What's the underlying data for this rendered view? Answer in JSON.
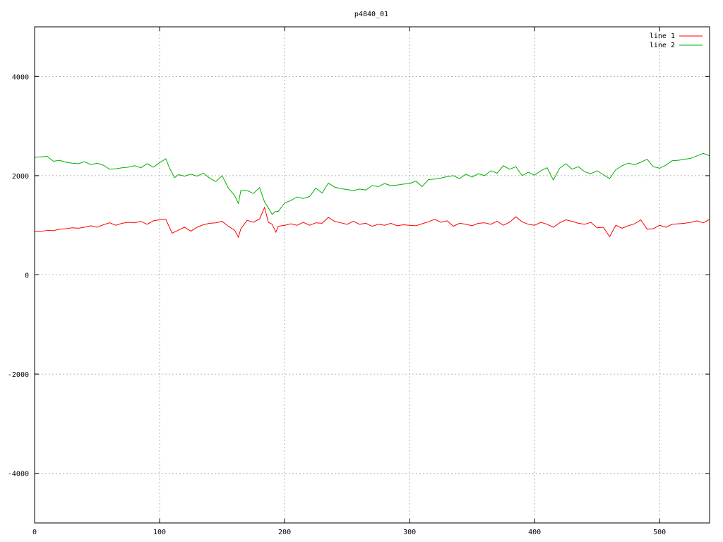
{
  "chart_data": {
    "type": "line",
    "title": "p4840_01",
    "xlabel": "",
    "ylabel": "",
    "xlim": [
      0,
      540
    ],
    "ylim": [
      -5000,
      5000
    ],
    "x_ticks": [
      0,
      100,
      200,
      300,
      400,
      500
    ],
    "y_ticks": [
      -4000,
      -2000,
      0,
      2000,
      4000
    ],
    "x_tick_labels": [
      "0",
      "100",
      "200",
      "300",
      "400",
      "500"
    ],
    "y_tick_labels": [
      "-4000",
      "-2000",
      "0",
      "2000",
      "4000"
    ],
    "grid": true,
    "legend_position": "top-right",
    "series": [
      {
        "name": "line 1",
        "color": "#ff0000",
        "x": [
          0,
          5,
          10,
          15,
          20,
          25,
          30,
          35,
          40,
          45,
          50,
          55,
          60,
          65,
          70,
          75,
          80,
          85,
          90,
          95,
          100,
          105,
          110,
          115,
          120,
          125,
          130,
          135,
          140,
          145,
          150,
          155,
          160,
          163,
          165,
          170,
          175,
          180,
          184,
          187,
          190,
          193,
          195,
          200,
          205,
          210,
          215,
          220,
          225,
          230,
          235,
          240,
          245,
          250,
          255,
          260,
          265,
          270,
          275,
          280,
          285,
          290,
          295,
          300,
          305,
          310,
          315,
          320,
          325,
          330,
          335,
          340,
          345,
          350,
          355,
          360,
          365,
          370,
          375,
          380,
          385,
          390,
          395,
          400,
          405,
          410,
          415,
          420,
          425,
          430,
          435,
          440,
          445,
          450,
          455,
          460,
          465,
          470,
          475,
          480,
          485,
          490,
          495,
          500,
          505,
          510,
          515,
          520,
          525,
          530,
          535,
          540
        ],
        "y": [
          880,
          870,
          900,
          890,
          920,
          930,
          950,
          940,
          960,
          990,
          960,
          1010,
          1050,
          1000,
          1040,
          1060,
          1050,
          1080,
          1020,
          1090,
          1110,
          1120,
          840,
          900,
          960,
          880,
          960,
          1010,
          1040,
          1050,
          1080,
          980,
          900,
          760,
          930,
          1100,
          1060,
          1130,
          1360,
          1060,
          1020,
          860,
          980,
          1000,
          1030,
          1000,
          1060,
          1000,
          1050,
          1040,
          1160,
          1080,
          1050,
          1020,
          1080,
          1020,
          1040,
          980,
          1020,
          1000,
          1040,
          990,
          1010,
          1000,
          990,
          1030,
          1070,
          1120,
          1060,
          1090,
          980,
          1040,
          1020,
          990,
          1040,
          1050,
          1020,
          1080,
          1000,
          1060,
          1170,
          1070,
          1020,
          1000,
          1060,
          1020,
          960,
          1050,
          1110,
          1080,
          1040,
          1020,
          1060,
          950,
          960,
          770,
          1000,
          940,
          990,
          1030,
          1110,
          920,
          930,
          1000,
          960,
          1020,
          1030,
          1040,
          1060,
          1090,
          1050,
          1120
        ]
      },
      {
        "name": "line 2",
        "color": "#00b000",
        "x": [
          0,
          5,
          10,
          15,
          20,
          25,
          30,
          35,
          40,
          45,
          50,
          55,
          60,
          65,
          70,
          75,
          80,
          85,
          90,
          95,
          100,
          105,
          108,
          112,
          115,
          120,
          125,
          130,
          135,
          140,
          145,
          150,
          155,
          160,
          163,
          165,
          170,
          175,
          180,
          184,
          187,
          190,
          193,
          195,
          200,
          205,
          210,
          215,
          220,
          225,
          230,
          235,
          240,
          245,
          250,
          255,
          260,
          265,
          270,
          275,
          280,
          285,
          290,
          295,
          300,
          305,
          310,
          315,
          320,
          325,
          330,
          335,
          340,
          345,
          350,
          355,
          360,
          365,
          370,
          375,
          380,
          385,
          390,
          395,
          400,
          405,
          410,
          415,
          420,
          425,
          430,
          435,
          440,
          445,
          450,
          455,
          460,
          465,
          470,
          475,
          480,
          485,
          490,
          495,
          500,
          505,
          510,
          515,
          520,
          525,
          530,
          535,
          540
        ],
        "y": [
          2370,
          2380,
          2390,
          2290,
          2310,
          2270,
          2250,
          2240,
          2280,
          2220,
          2250,
          2210,
          2130,
          2140,
          2160,
          2170,
          2200,
          2160,
          2240,
          2170,
          2260,
          2340,
          2150,
          1960,
          2020,
          1990,
          2030,
          1990,
          2050,
          1950,
          1880,
          2000,
          1750,
          1600,
          1440,
          1700,
          1700,
          1640,
          1760,
          1470,
          1350,
          1220,
          1280,
          1280,
          1450,
          1500,
          1570,
          1540,
          1580,
          1750,
          1650,
          1850,
          1770,
          1740,
          1720,
          1700,
          1730,
          1710,
          1800,
          1780,
          1840,
          1800,
          1810,
          1830,
          1840,
          1890,
          1780,
          1920,
          1930,
          1950,
          1980,
          2000,
          1940,
          2030,
          1970,
          2040,
          2000,
          2100,
          2050,
          2200,
          2130,
          2180,
          2000,
          2070,
          2010,
          2100,
          2160,
          1910,
          2150,
          2240,
          2130,
          2180,
          2080,
          2040,
          2100,
          2020,
          1940,
          2120,
          2200,
          2250,
          2220,
          2270,
          2330,
          2180,
          2150,
          2210,
          2300,
          2310,
          2330,
          2350,
          2400,
          2450,
          2400
        ]
      }
    ]
  }
}
